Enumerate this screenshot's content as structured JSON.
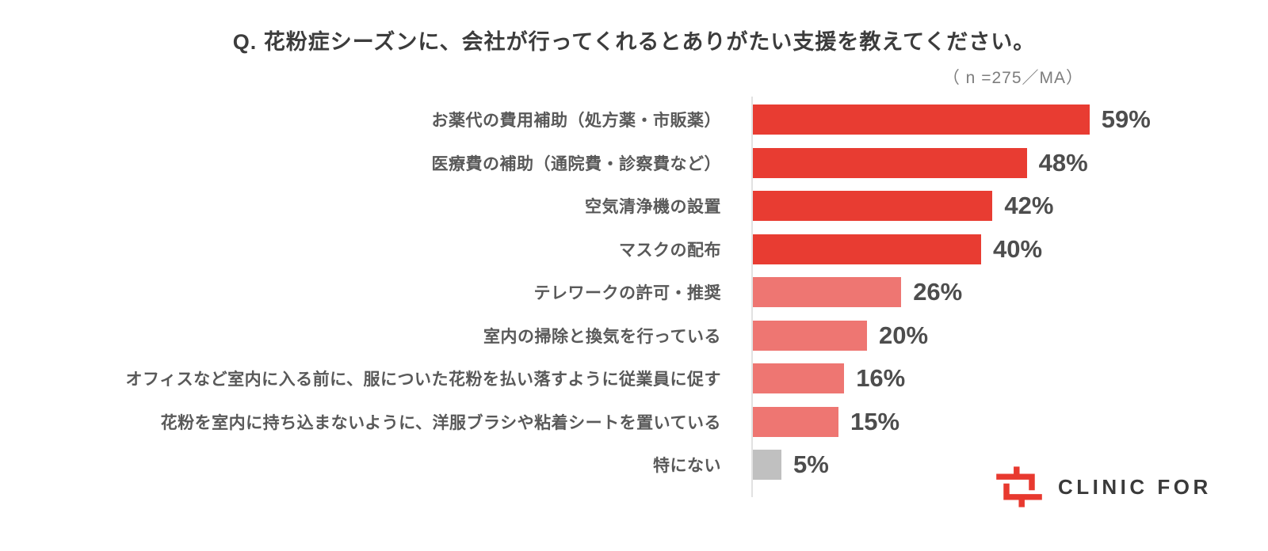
{
  "title": "Q. 花粉症シーズンに、会社が行ってくれるとありがたい支援を教えてください。",
  "chart_data": {
    "type": "bar",
    "orientation": "horizontal",
    "title": "Q. 花粉症シーズンに、会社が行ってくれるとありがたい支援を教えてください。",
    "annotation": "（ n =275／MA）",
    "categories": [
      "お薬代の費用補助（処方薬・市販薬）",
      "医療費の補助（通院費・診察費など）",
      "空気清浄機の設置",
      "マスクの配布",
      "テレワークの許可・推奨",
      "室内の掃除と換気を行っている",
      "オフィスなど室内に入る前に、服についた花粉を払い落すように従業員に促す",
      "花粉を室内に持ち込まないように、洋服ブラシや粘着シートを置いている",
      "特にない"
    ],
    "values": [
      59,
      48,
      42,
      40,
      26,
      20,
      16,
      15,
      5
    ],
    "unit": "%",
    "value_label_suffix": "%",
    "xlim": [
      0,
      62
    ],
    "grid": false,
    "legend": "none",
    "bar_colors": [
      "#E83C32",
      "#E83C32",
      "#E83C32",
      "#E83C32",
      "#EE7672",
      "#EE7672",
      "#EE7672",
      "#EE7672",
      "#C0C0C0"
    ]
  },
  "colors": {
    "bar_primary": "#E83C32",
    "bar_secondary": "#EE7672",
    "bar_neutral": "#C0C0C0",
    "axis_line": "#E2E2E2",
    "title_text": "#3C3C3C",
    "category_text": "#595959",
    "value_text": "#4D4D4D",
    "note_text": "#7D7D7D"
  },
  "logo": {
    "text": "CLINIC FOR",
    "icon": "clinic-for-cross-icon",
    "icon_color": "#E8392F",
    "text_color": "#3A3A3A"
  }
}
